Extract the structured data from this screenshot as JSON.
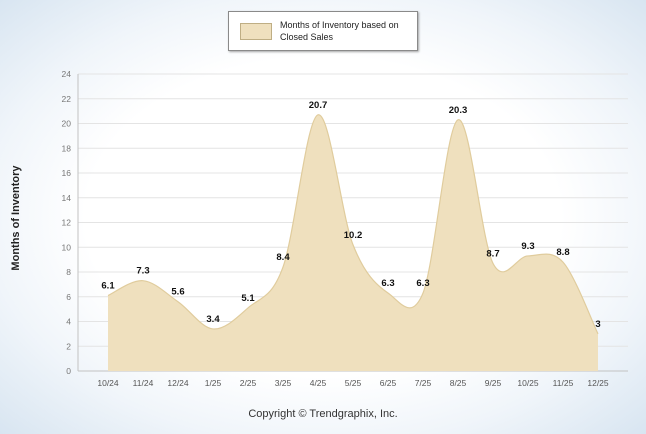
{
  "legend": {
    "label": "Months of Inventory based on Closed Sales"
  },
  "footer": {
    "text": "Copyright © Trendgraphix, Inc."
  },
  "chart_data": {
    "type": "area",
    "title": "",
    "series_name": "Months of Inventory based on Closed Sales",
    "categories": [
      "10/24",
      "11/24",
      "12/24",
      "1/25",
      "2/25",
      "3/25",
      "4/25",
      "5/25",
      "6/25",
      "7/25",
      "8/25",
      "9/25",
      "10/25",
      "11/25",
      "12/25"
    ],
    "values": [
      6.1,
      7.3,
      5.6,
      3.4,
      5.1,
      8.4,
      20.7,
      10.2,
      6.3,
      6.3,
      20.3,
      8.7,
      9.3,
      8.8,
      3
    ],
    "xlabel": "",
    "ylabel": "Months of Inventory",
    "ylim": [
      0,
      24
    ],
    "ytick_step": 2,
    "grid": true,
    "legend_position": "top-center",
    "colors": {
      "area_fill": "#EFE0BE",
      "area_stroke": "#E0CC9D",
      "grid": "#E4E4E4",
      "axis": "#C2C2C2",
      "tick_text": "#777777",
      "data_label_text": "#111111"
    }
  }
}
